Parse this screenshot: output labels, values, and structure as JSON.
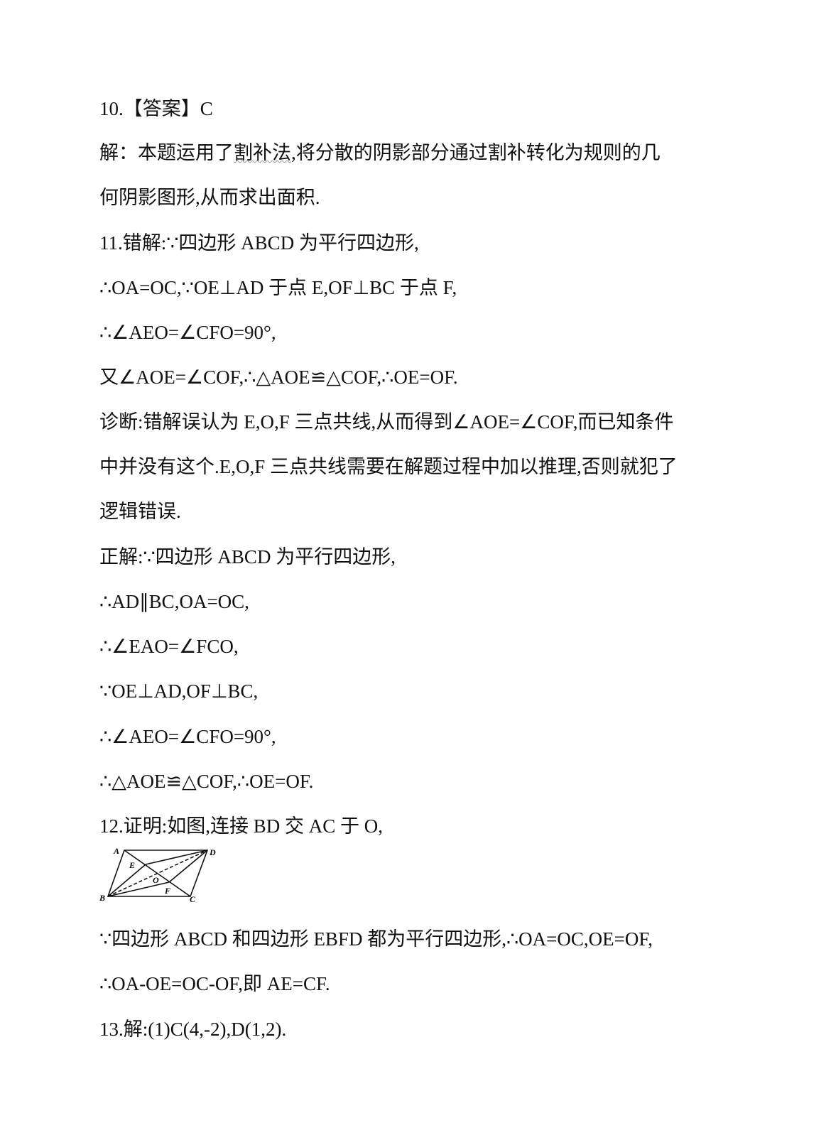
{
  "lines": [
    "10.【答案】C",
    "解：本题运用了",
    "割补法",
    ",将分散的阴影部分通过割补转化为规则的几",
    "何阴影图形,从而求出面积.",
    "11.错解:∵四边形 ABCD 为平行四边形,",
    "∴OA=OC,∵OE⊥AD 于点 E,OF⊥BC 于点 F,",
    "∴∠AEO=∠CFO=90°,",
    "又∠AOE=∠COF,∴△AOE≌△COF,∴OE=OF.",
    "诊断:错解误认为 E,O,F 三点共线,从而得到∠AOE=∠COF,而已知条件",
    "中并没有这个.E,O,F 三点共线需要在解题过程中加以推理,否则就犯了",
    "逻辑错误.",
    "正解:∵四边形 ABCD 为平行四边形,",
    "∴AD∥BC,OA=OC,",
    "∴∠EAO=∠FCO,",
    "∵OE⊥AD,OF⊥BC,",
    "∴∠AEO=∠CFO=90°,",
    "∴△AOE≌△COF,∴OE=OF.",
    "12.证明:如图,连接 BD 交 AC 于 O,",
    "∵四边形 ABCD 和四边形 EBFD 都为平行四边形,∴OA=OC,OE=OF,",
    "∴OA-OE=OC-OF,即 AE=CF.",
    "13.解:(1)C(4,-2),D(1,2)."
  ],
  "figure": {
    "labels": {
      "A": "A",
      "B": "B",
      "C": "C",
      "D": "D",
      "E": "E",
      "F": "F",
      "O": "O"
    }
  }
}
